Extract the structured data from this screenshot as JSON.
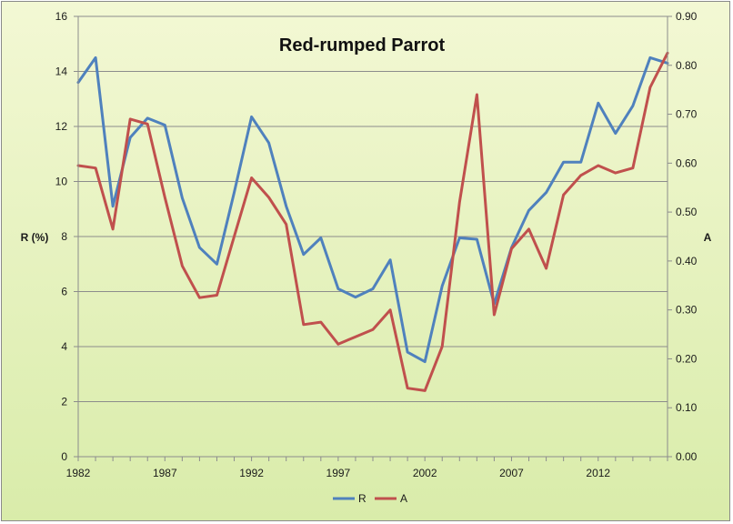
{
  "chart_data": {
    "type": "line",
    "title": "Red-rumped Parrot",
    "xlabel": "",
    "ylabel": "R (%)",
    "y2label": "A",
    "xlim": [
      1982,
      2016
    ],
    "ylim": [
      0,
      16
    ],
    "y2lim": [
      0,
      0.9
    ],
    "x_ticks": [
      "1982",
      "1987",
      "1992",
      "1997",
      "2002",
      "2007",
      "2012"
    ],
    "y_ticks": [
      "0",
      "2",
      "4",
      "6",
      "8",
      "10",
      "12",
      "14",
      "16"
    ],
    "y2_ticks": [
      "0.00",
      "0.10",
      "0.20",
      "0.30",
      "0.40",
      "0.50",
      "0.60",
      "0.70",
      "0.80",
      "0.90"
    ],
    "grid": true,
    "legend": "bottom",
    "x": [
      1982,
      1983,
      1984,
      1985,
      1986,
      1987,
      1988,
      1989,
      1990,
      1991,
      1992,
      1993,
      1994,
      1995,
      1996,
      1997,
      1998,
      1999,
      2000,
      2001,
      2002,
      2003,
      2004,
      2005,
      2006,
      2007,
      2008,
      2009,
      2010,
      2011,
      2012,
      2013,
      2014,
      2015,
      2016
    ],
    "series": [
      {
        "name": "R",
        "axis": "left",
        "color": "#4f81bd",
        "values": [
          13.6,
          14.5,
          9.1,
          11.6,
          12.3,
          12.05,
          9.4,
          7.6,
          7.0,
          9.6,
          12.35,
          11.4,
          9.1,
          7.35,
          7.95,
          6.1,
          5.8,
          6.1,
          7.15,
          3.8,
          3.45,
          6.2,
          7.95,
          7.9,
          5.55,
          7.6,
          8.95,
          9.6,
          10.7,
          10.7,
          12.85,
          11.75,
          12.75,
          14.5,
          14.3
        ]
      },
      {
        "name": "A",
        "axis": "right",
        "color": "#c0504d",
        "values": [
          0.595,
          0.59,
          0.465,
          0.69,
          0.68,
          0.53,
          0.39,
          0.325,
          0.33,
          0.45,
          0.57,
          0.53,
          0.475,
          0.27,
          0.275,
          0.23,
          0.245,
          0.26,
          0.3,
          0.14,
          0.135,
          0.225,
          0.52,
          0.74,
          0.29,
          0.425,
          0.465,
          0.385,
          0.535,
          0.575,
          0.595,
          0.58,
          0.59,
          0.755,
          0.825
        ]
      }
    ]
  }
}
